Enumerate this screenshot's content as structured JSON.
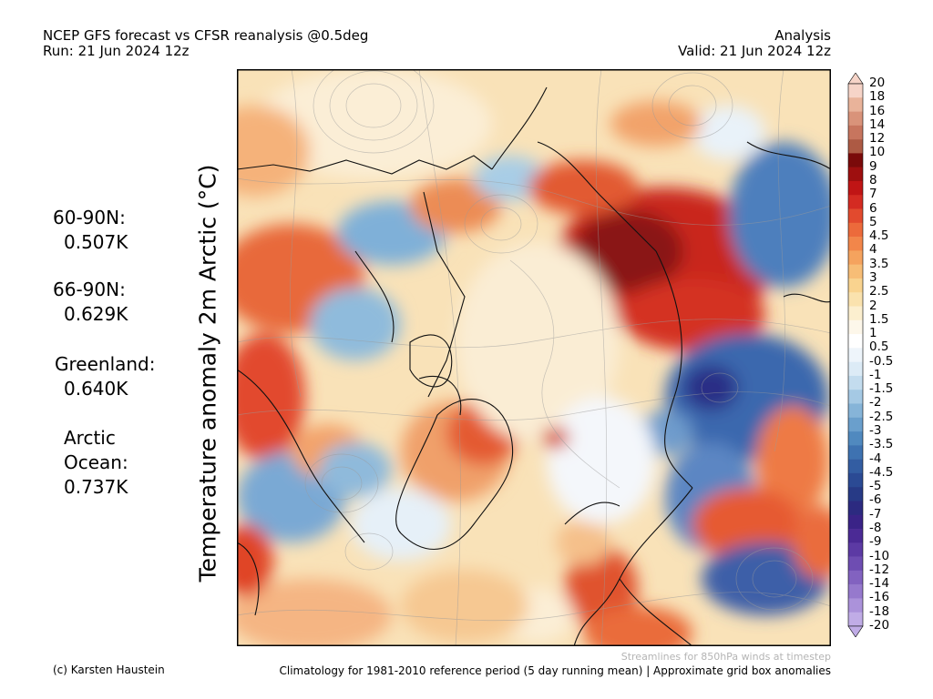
{
  "header": {
    "title_line1": "NCEP GFS forecast vs CFSR reanalysis @0.5deg",
    "title_line2": "Run: 21 Jun 2024 12z",
    "right_line1": "Analysis",
    "right_line2": "Valid: 21 Jun 2024 12z"
  },
  "y_title": "Temperature anomaly 2m Arctic (°C)",
  "stats": [
    {
      "label": "60-90N:",
      "value": "0.507K"
    },
    {
      "label": "66-90N:",
      "value": "0.629K"
    },
    {
      "label": "Greenland:",
      "value": "0.640K"
    },
    {
      "label": "Arctic",
      "label2": "Ocean:",
      "value": "0.737K"
    }
  ],
  "colorbar": {
    "levels": [
      "20",
      "18",
      "16",
      "14",
      "12",
      "10",
      "9",
      "8",
      "7",
      "6",
      "5",
      "4.5",
      "4",
      "3.5",
      "3",
      "2.5",
      "2",
      "1.5",
      "1",
      "0.5",
      "-0.5",
      "-1",
      "-1.5",
      "-2",
      "-2.5",
      "-3",
      "-3.5",
      "-4",
      "-4.5",
      "-5",
      "-6",
      "-7",
      "-8",
      "-9",
      "-10",
      "-12",
      "-14",
      "-16",
      "-18",
      "-20"
    ],
    "colors": [
      "#f6d4c8",
      "#e9b39a",
      "#d9937a",
      "#c7755e",
      "#ad5a44",
      "#7a0a0a",
      "#9e0f0f",
      "#c01515",
      "#d42b22",
      "#e24a2e",
      "#ec6a3b",
      "#f2864a",
      "#f5a35e",
      "#f7bd76",
      "#f9d38f",
      "#fae2ae",
      "#fcefcf",
      "#fdf7ea",
      "#ffffff",
      "#eef5fb",
      "#dcebf6",
      "#c3dcee",
      "#a5c9e4",
      "#86b4d8",
      "#6a9fcc",
      "#5089bf",
      "#3e72b1",
      "#335da2",
      "#2b4a94",
      "#273a86",
      "#2c2a80",
      "#3a2387",
      "#4b2a95",
      "#5c3aa4",
      "#6e4db2",
      "#8262c0",
      "#9679cd",
      "#ab92da",
      "#c0ace6"
    ]
  },
  "footer": {
    "credit": "(c) Karsten Haustein",
    "streamlines_note": "Streamlines for 850hPa winds at timestep",
    "climatology_note": "Climatology for 1981-2010 reference period (5 day running mean) | Approximate grid box anomalies"
  }
}
